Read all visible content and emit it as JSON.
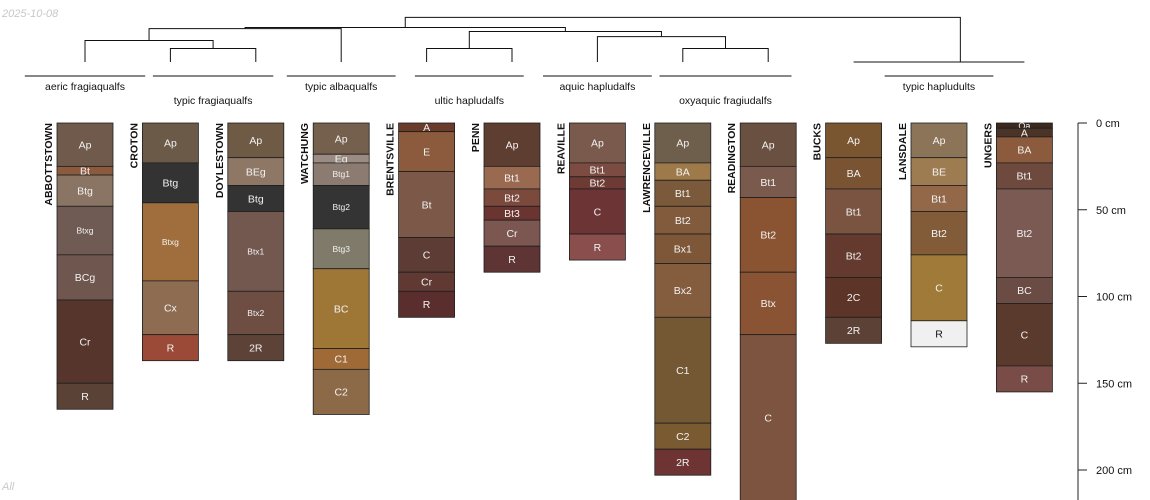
{
  "date_stamp": "2025-10-08",
  "panel_tag": "All",
  "chart_data": {
    "type": "soil-profile-dendrogram",
    "depth_axis": {
      "units": "cm",
      "range": [
        0,
        215
      ],
      "ticks": [
        {
          "value": 0,
          "label": "0 cm"
        },
        {
          "value": 50,
          "label": "50 cm"
        },
        {
          "value": 100,
          "label": "100 cm"
        },
        {
          "value": 150,
          "label": "150 cm"
        },
        {
          "value": 200,
          "label": "200 cm"
        }
      ]
    },
    "groups": [
      {
        "label": "aeric fragiaqualfs",
        "profiles": [
          "ABBOTTSTOWN"
        ]
      },
      {
        "label": "typic fragiaqualfs",
        "profiles": [
          "CROTON",
          "DOYLESTOWN"
        ]
      },
      {
        "label": "typic albaqualfs",
        "profiles": [
          "WATCHUNG"
        ]
      },
      {
        "label": "ultic hapludalfs",
        "profiles": [
          "BRENTSVILLE",
          "PENN"
        ]
      },
      {
        "label": "aquic hapludalfs",
        "profiles": [
          "REAVILLE"
        ]
      },
      {
        "label": "oxyaquic fragiudalfs",
        "profiles": [
          "LAWRENCEVILLE",
          "READINGTON"
        ]
      },
      {
        "label": "typic hapludults",
        "profiles": [
          "BUCKS",
          "LANSDALE",
          "UNGERS"
        ]
      }
    ],
    "profiles": [
      {
        "name": "ABBOTTSTOWN",
        "horizons": [
          {
            "name": "Ap",
            "top": 0,
            "bottom": 25,
            "color": "#6f5a4b"
          },
          {
            "name": "Bt",
            "top": 25,
            "bottom": 30,
            "color": "#8c5a3c"
          },
          {
            "name": "Btg",
            "top": 30,
            "bottom": 48,
            "color": "#8a7565"
          },
          {
            "name": "Btxg",
            "top": 48,
            "bottom": 76,
            "color": "#6f5b54"
          },
          {
            "name": "BCg",
            "top": 76,
            "bottom": 102,
            "color": "#6f5750"
          },
          {
            "name": "Cr",
            "top": 102,
            "bottom": 150,
            "color": "#56362c"
          },
          {
            "name": "R",
            "top": 150,
            "bottom": 165,
            "color": "#5a4236"
          }
        ]
      },
      {
        "name": "CROTON",
        "horizons": [
          {
            "name": "Ap",
            "top": 0,
            "bottom": 23,
            "color": "#6b5a48"
          },
          {
            "name": "Btg",
            "top": 23,
            "bottom": 46,
            "color": "#333333"
          },
          {
            "name": "Btxg",
            "top": 46,
            "bottom": 91,
            "color": "#a06e3c"
          },
          {
            "name": "Cx",
            "top": 91,
            "bottom": 122,
            "color": "#8e6c52"
          },
          {
            "name": "R",
            "top": 122,
            "bottom": 137,
            "color": "#9a4a36"
          }
        ]
      },
      {
        "name": "DOYLESTOWN",
        "horizons": [
          {
            "name": "Ap",
            "top": 0,
            "bottom": 20,
            "color": "#6f5a46"
          },
          {
            "name": "BEg",
            "top": 20,
            "bottom": 36,
            "color": "#8f7765"
          },
          {
            "name": "Btg",
            "top": 36,
            "bottom": 51,
            "color": "#333333"
          },
          {
            "name": "Btx1",
            "top": 51,
            "bottom": 97,
            "color": "#735850"
          },
          {
            "name": "Btx2",
            "top": 97,
            "bottom": 122,
            "color": "#6e4e42"
          },
          {
            "name": "2R",
            "top": 122,
            "bottom": 137,
            "color": "#5d4337"
          }
        ]
      },
      {
        "name": "WATCHUNG",
        "horizons": [
          {
            "name": "Ap",
            "top": 0,
            "bottom": 18,
            "color": "#74604d"
          },
          {
            "name": "Eg",
            "top": 18,
            "bottom": 23,
            "color": "#9a8c82"
          },
          {
            "name": "Btg1",
            "top": 23,
            "bottom": 36,
            "color": "#8c7b70"
          },
          {
            "name": "Btg2",
            "top": 36,
            "bottom": 61,
            "color": "#343434"
          },
          {
            "name": "Btg3",
            "top": 61,
            "bottom": 84,
            "color": "#7f7a6a"
          },
          {
            "name": "BC",
            "top": 84,
            "bottom": 130,
            "color": "#9e7636"
          },
          {
            "name": "C1",
            "top": 130,
            "bottom": 142,
            "color": "#a06a36"
          },
          {
            "name": "C2",
            "top": 142,
            "bottom": 168,
            "color": "#8c6a48"
          }
        ]
      },
      {
        "name": "BRENTSVILLE",
        "horizons": [
          {
            "name": "A",
            "top": 0,
            "bottom": 5,
            "color": "#6a3a2a"
          },
          {
            "name": "E",
            "top": 5,
            "bottom": 28,
            "color": "#8c5a3c"
          },
          {
            "name": "Bt",
            "top": 28,
            "bottom": 66,
            "color": "#7c5848"
          },
          {
            "name": "C",
            "top": 66,
            "bottom": 86,
            "color": "#5c3c34"
          },
          {
            "name": "Cr",
            "top": 86,
            "bottom": 97,
            "color": "#603a32"
          },
          {
            "name": "R",
            "top": 97,
            "bottom": 112,
            "color": "#5a2e2c"
          }
        ]
      },
      {
        "name": "PENN",
        "horizons": [
          {
            "name": "Ap",
            "top": 0,
            "bottom": 25,
            "color": "#5f3e32"
          },
          {
            "name": "Bt1",
            "top": 25,
            "bottom": 38,
            "color": "#9a6a50"
          },
          {
            "name": "Bt2",
            "top": 38,
            "bottom": 48,
            "color": "#7c4a3c"
          },
          {
            "name": "Bt3",
            "top": 48,
            "bottom": 56,
            "color": "#6a3430"
          },
          {
            "name": "Cr",
            "top": 56,
            "bottom": 71,
            "color": "#7c5650"
          },
          {
            "name": "R",
            "top": 71,
            "bottom": 86,
            "color": "#5e3434"
          }
        ]
      },
      {
        "name": "REAVILLE",
        "horizons": [
          {
            "name": "Ap",
            "top": 0,
            "bottom": 23,
            "color": "#7a5a4c"
          },
          {
            "name": "Bt1",
            "top": 23,
            "bottom": 31,
            "color": "#7c4c42"
          },
          {
            "name": "Bt2",
            "top": 31,
            "bottom": 38,
            "color": "#6e3a34"
          },
          {
            "name": "C",
            "top": 38,
            "bottom": 64,
            "color": "#6c3434"
          },
          {
            "name": "R",
            "top": 64,
            "bottom": 79,
            "color": "#8a4e4c"
          }
        ]
      },
      {
        "name": "LAWRENCEVILLE",
        "horizons": [
          {
            "name": "Ap",
            "top": 0,
            "bottom": 23,
            "color": "#6e5e4c"
          },
          {
            "name": "BA",
            "top": 23,
            "bottom": 33,
            "color": "#9e7a4a"
          },
          {
            "name": "Bt1",
            "top": 33,
            "bottom": 48,
            "color": "#7a5a3a"
          },
          {
            "name": "Bt2",
            "top": 48,
            "bottom": 64,
            "color": "#825a3c"
          },
          {
            "name": "Bx1",
            "top": 64,
            "bottom": 81,
            "color": "#7e5638"
          },
          {
            "name": "Bx2",
            "top": 81,
            "bottom": 112,
            "color": "#845c3e"
          },
          {
            "name": "C1",
            "top": 112,
            "bottom": 173,
            "color": "#745834"
          },
          {
            "name": "C2",
            "top": 173,
            "bottom": 188,
            "color": "#7a5a30"
          },
          {
            "name": "2R",
            "top": 188,
            "bottom": 203,
            "color": "#6e3434"
          }
        ]
      },
      {
        "name": "READINGTON",
        "horizons": [
          {
            "name": "Ap",
            "top": 0,
            "bottom": 25,
            "color": "#6a5040"
          },
          {
            "name": "Bt1",
            "top": 25,
            "bottom": 43,
            "color": "#7a5a4c"
          },
          {
            "name": "Bt2",
            "top": 43,
            "bottom": 86,
            "color": "#8a5432"
          },
          {
            "name": "Btx",
            "top": 86,
            "bottom": 122,
            "color": "#8a5434"
          },
          {
            "name": "C",
            "top": 122,
            "bottom": 218,
            "color": "#7c5440"
          }
        ]
      },
      {
        "name": "BUCKS",
        "horizons": [
          {
            "name": "Ap",
            "top": 0,
            "bottom": 20,
            "color": "#7a5630"
          },
          {
            "name": "BA",
            "top": 20,
            "bottom": 38,
            "color": "#7a5432"
          },
          {
            "name": "Bt1",
            "top": 38,
            "bottom": 64,
            "color": "#7a5440"
          },
          {
            "name": "Bt2",
            "top": 64,
            "bottom": 89,
            "color": "#643a2e"
          },
          {
            "name": "2C",
            "top": 89,
            "bottom": 112,
            "color": "#5c3428"
          },
          {
            "name": "2R",
            "top": 112,
            "bottom": 127,
            "color": "#5c4236"
          }
        ]
      },
      {
        "name": "LANSDALE",
        "horizons": [
          {
            "name": "Ap",
            "top": 0,
            "bottom": 20,
            "color": "#8c7458"
          },
          {
            "name": "BE",
            "top": 20,
            "bottom": 36,
            "color": "#9e7c52"
          },
          {
            "name": "Bt1",
            "top": 36,
            "bottom": 51,
            "color": "#926848"
          },
          {
            "name": "Bt2",
            "top": 51,
            "bottom": 76,
            "color": "#825c38"
          },
          {
            "name": "C",
            "top": 76,
            "bottom": 114,
            "color": "#a07a38"
          },
          {
            "name": "R",
            "top": 114,
            "bottom": 129,
            "color": "#f0f0f0"
          }
        ]
      },
      {
        "name": "UNGERS",
        "horizons": [
          {
            "name": "Oa",
            "top": 0,
            "bottom": 3,
            "color": "#3c2a1e"
          },
          {
            "name": "A",
            "top": 3,
            "bottom": 8,
            "color": "#4a3428"
          },
          {
            "name": "BA",
            "top": 8,
            "bottom": 23,
            "color": "#8c5a3c"
          },
          {
            "name": "Bt1",
            "top": 23,
            "bottom": 38,
            "color": "#6e4a3e"
          },
          {
            "name": "Bt2",
            "top": 38,
            "bottom": 89,
            "color": "#7a5a52"
          },
          {
            "name": "BC",
            "top": 89,
            "bottom": 104,
            "color": "#6a4c44"
          },
          {
            "name": "C",
            "top": 104,
            "bottom": 140,
            "color": "#5a3a2c"
          },
          {
            "name": "R",
            "top": 140,
            "bottom": 155,
            "color": "#7a4c48"
          }
        ]
      }
    ],
    "dendrogram": {
      "leaf_order": [
        "ABBOTTSTOWN",
        "CROTON",
        "DOYLESTOWN",
        "WATCHUNG",
        "BRENTSVILLE",
        "PENN",
        "REAVILLE",
        "LAWRENCEVILLE",
        "READINGTON",
        "BUCKS",
        "LANSDALE",
        "UNGERS"
      ],
      "merges": [
        {
          "left": "CROTON",
          "right": "DOYLESTOWN",
          "height": 1.2
        },
        {
          "left": "ABBOTTSTOWN",
          "right": "CROTON+DOYLESTOWN",
          "height": 1.9
        },
        {
          "left": "ABBOTTSTOWN+CROTON+DOYLESTOWN",
          "right": "WATCHUNG",
          "height": 2.95
        },
        {
          "left": "BRENTSVILLE",
          "right": "PENN",
          "height": 1.2
        },
        {
          "left": "LAWRENCEVILLE",
          "right": "READINGTON",
          "height": 1.2
        },
        {
          "left": "REAVILLE",
          "right": "LAWRENCEVILLE+READINGTON",
          "height": 2.25
        },
        {
          "left": "BRENTSVILLE+PENN",
          "right": "REAVILLE+LAWRENCEVILLE+READINGTON",
          "height": 2.7
        },
        {
          "left": "ABBOTTSTOWN+CROTON+DOYLESTOWN+WATCHUNG",
          "right": "BRENTSVILLE+PENN+REAVILLE+LAWRENCEVILLE+READINGTON",
          "height": 3.05
        },
        {
          "left": "BUCKS",
          "right": "LANSDALE",
          "height": 0
        },
        {
          "left": "BUCKS+LANSDALE",
          "right": "UNGERS",
          "height": 0
        },
        {
          "left": "ABBOTTSTOWN+CROTON+DOYLESTOWN+WATCHUNG+BRENTSVILLE+PENN+REAVILLE+LAWRENCEVILLE+READINGTON",
          "right": "BUCKS+LANSDALE+UNGERS",
          "height": 3.95
        }
      ]
    }
  }
}
